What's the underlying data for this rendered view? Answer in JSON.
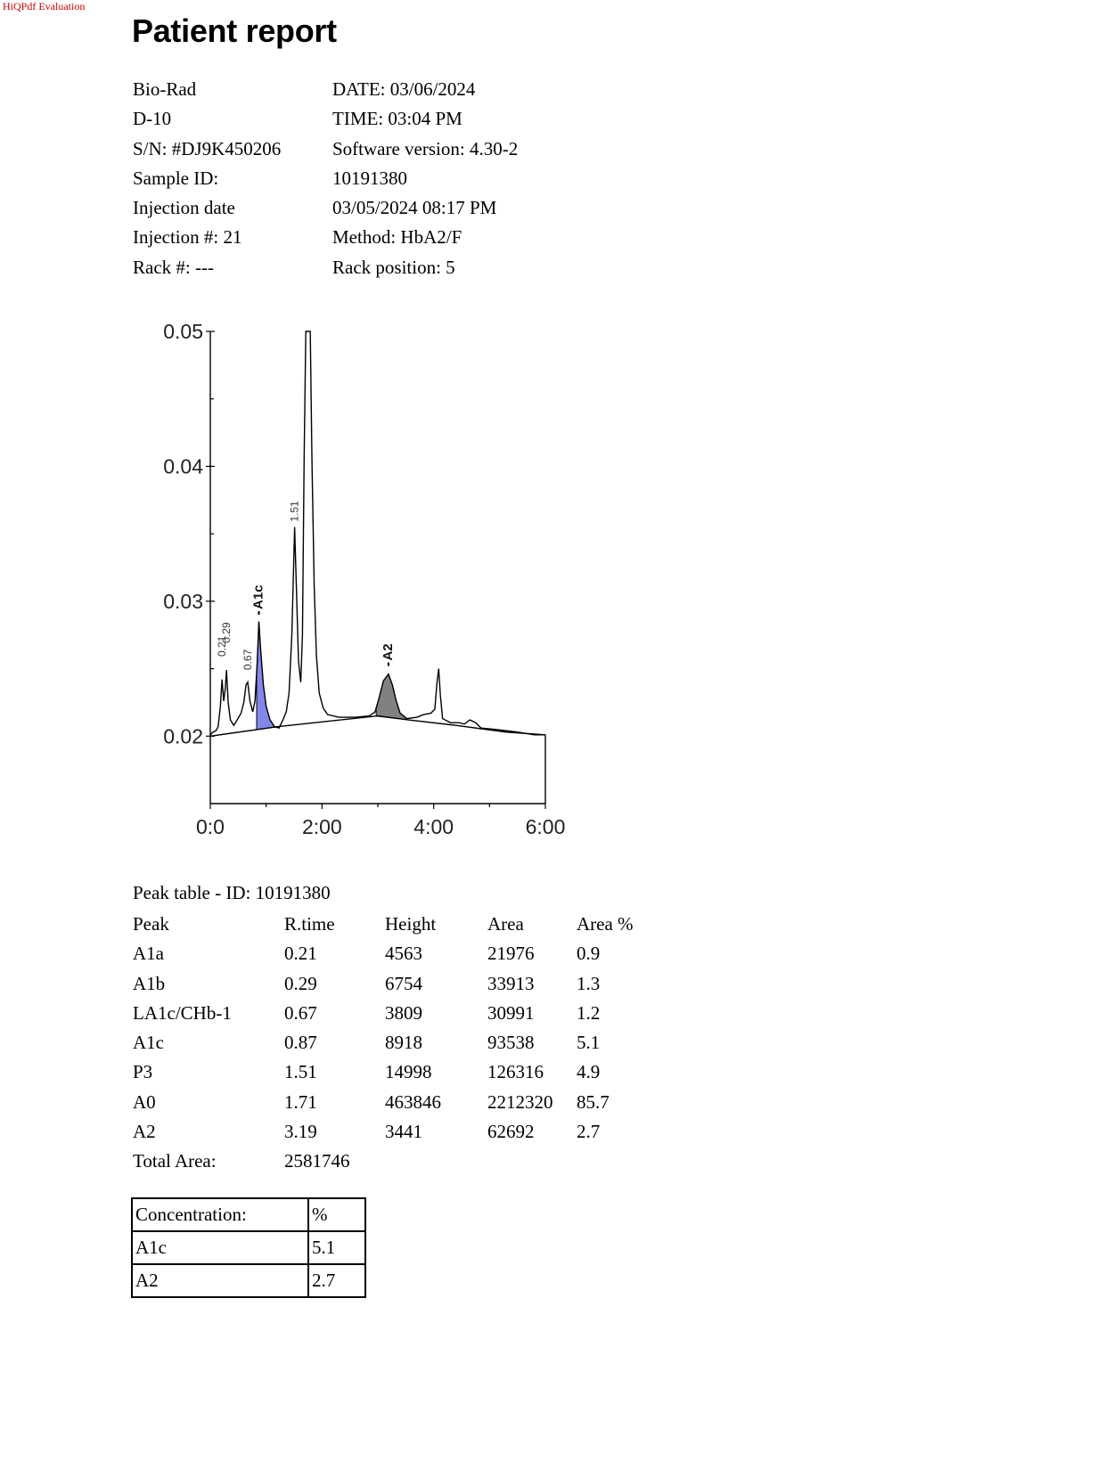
{
  "watermark": "HiQPdf Evaluation",
  "title": "Patient report",
  "info": [
    {
      "left": "Bio-Rad",
      "right": "DATE: 03/06/2024"
    },
    {
      "left": "D-10",
      "right": "TIME:  03:04 PM"
    },
    {
      "left": "S/N: #DJ9K450206",
      "right": "Software version: 4.30-2"
    },
    {
      "left": "Sample ID:",
      "right": "10191380"
    },
    {
      "left": "Injection date",
      "right": "03/05/2024 08:17 PM"
    },
    {
      "left": "Injection #: 21",
      "right": "Method: HbA2/F"
    },
    {
      "left": "Rack #: ---",
      "right": "Rack position: 5"
    }
  ],
  "chart_data": {
    "type": "line",
    "title": "",
    "xlabel": "",
    "ylabel": "",
    "x_tick_labels": [
      "0:0",
      "2:00",
      "4:00",
      "6:00"
    ],
    "y_tick_labels": [
      "0.05",
      "0.04",
      "0.03",
      "0.02"
    ],
    "xlim": [
      0,
      6
    ],
    "ylim": [
      0.015,
      0.05
    ],
    "grid": false,
    "peak_labels": [
      {
        "label": "0.21",
        "x": 0.21,
        "y": 0.0255
      },
      {
        "label": "0.29",
        "x": 0.29,
        "y": 0.0265
      },
      {
        "label": "0.67",
        "x": 0.67,
        "y": 0.0245
      },
      {
        "label": "A1c",
        "x": 0.87,
        "y": 0.029
      },
      {
        "label": "1.51",
        "x": 1.51,
        "y": 0.0355
      },
      {
        "label": "A2",
        "x": 3.19,
        "y": 0.0252
      }
    ],
    "shaded_peaks": [
      {
        "name": "A1c",
        "color": "#6f72e6",
        "x_range": [
          0.83,
          1.23
        ]
      },
      {
        "name": "A2",
        "color": "#6b6b6b",
        "x_range": [
          2.97,
          3.52
        ]
      }
    ],
    "trace": [
      [
        0,
        0.0201
      ],
      [
        0.05,
        0.0203
      ],
      [
        0.1,
        0.0204
      ],
      [
        0.14,
        0.0207
      ],
      [
        0.18,
        0.0222
      ],
      [
        0.21,
        0.0242
      ],
      [
        0.24,
        0.0226
      ],
      [
        0.27,
        0.0236
      ],
      [
        0.29,
        0.0249
      ],
      [
        0.32,
        0.0225
      ],
      [
        0.36,
        0.0212
      ],
      [
        0.42,
        0.0208
      ],
      [
        0.48,
        0.0212
      ],
      [
        0.55,
        0.0217
      ],
      [
        0.6,
        0.0225
      ],
      [
        0.64,
        0.0238
      ],
      [
        0.67,
        0.024
      ],
      [
        0.71,
        0.0226
      ],
      [
        0.76,
        0.0218
      ],
      [
        0.8,
        0.0226
      ],
      [
        0.84,
        0.0255
      ],
      [
        0.87,
        0.0285
      ],
      [
        0.9,
        0.0265
      ],
      [
        0.95,
        0.0238
      ],
      [
        1.0,
        0.0222
      ],
      [
        1.07,
        0.0212
      ],
      [
        1.15,
        0.0207
      ],
      [
        1.23,
        0.0206
      ],
      [
        1.3,
        0.0212
      ],
      [
        1.36,
        0.0218
      ],
      [
        1.41,
        0.0232
      ],
      [
        1.46,
        0.0275
      ],
      [
        1.51,
        0.0355
      ],
      [
        1.54,
        0.0312
      ],
      [
        1.58,
        0.0255
      ],
      [
        1.62,
        0.024
      ],
      [
        1.65,
        0.0275
      ],
      [
        1.68,
        0.0405
      ],
      [
        1.71,
        0.05
      ],
      [
        1.79,
        0.05
      ],
      [
        1.82,
        0.0405
      ],
      [
        1.86,
        0.0312
      ],
      [
        1.9,
        0.026
      ],
      [
        1.95,
        0.0232
      ],
      [
        2.02,
        0.0221
      ],
      [
        2.1,
        0.0216
      ],
      [
        2.3,
        0.0214
      ],
      [
        2.6,
        0.0214
      ],
      [
        2.85,
        0.0215
      ],
      [
        2.95,
        0.0218
      ],
      [
        3.02,
        0.0228
      ],
      [
        3.1,
        0.0241
      ],
      [
        3.19,
        0.0246
      ],
      [
        3.26,
        0.0238
      ],
      [
        3.33,
        0.0226
      ],
      [
        3.4,
        0.0217
      ],
      [
        3.52,
        0.0213
      ],
      [
        3.7,
        0.0214
      ],
      [
        3.82,
        0.0216
      ],
      [
        3.95,
        0.0217
      ],
      [
        4.02,
        0.022
      ],
      [
        4.06,
        0.024
      ],
      [
        4.09,
        0.025
      ],
      [
        4.12,
        0.023
      ],
      [
        4.16,
        0.0213
      ],
      [
        4.3,
        0.021
      ],
      [
        4.45,
        0.021
      ],
      [
        4.55,
        0.0209
      ],
      [
        4.65,
        0.0212
      ],
      [
        4.75,
        0.021
      ],
      [
        4.85,
        0.0206
      ],
      [
        5.1,
        0.0205
      ],
      [
        5.5,
        0.0203
      ],
      [
        5.8,
        0.0201
      ],
      [
        6.0,
        0.0201
      ]
    ],
    "baseline": [
      [
        0,
        0.02
      ],
      [
        1.2,
        0.0207
      ],
      [
        3.0,
        0.0215
      ],
      [
        3.55,
        0.0212
      ],
      [
        4.4,
        0.0208
      ],
      [
        5.3,
        0.0203
      ],
      [
        6.0,
        0.0201
      ]
    ]
  },
  "peak_table": {
    "title": "Peak table  -  ID: 10191380",
    "headers": [
      "Peak",
      "R.time",
      "Height",
      "Area",
      "Area %"
    ],
    "rows": [
      [
        "A1a",
        "0.21",
        "4563",
        "21976",
        "0.9"
      ],
      [
        "A1b",
        "0.29",
        "6754",
        "33913",
        "1.3"
      ],
      [
        "LA1c/CHb-1",
        "0.67",
        "3809",
        "30991",
        "1.2"
      ],
      [
        "A1c",
        "0.87",
        "8918",
        "93538",
        "5.1"
      ],
      [
        "P3",
        "1.51",
        "14998",
        "126316",
        "4.9"
      ],
      [
        "A0",
        "1.71",
        "463846",
        "2212320",
        "85.7"
      ],
      [
        "A2",
        "3.19",
        "3441",
        "62692",
        "2.7"
      ]
    ],
    "total_label": "Total Area:",
    "total_value": "2581746"
  },
  "concentration": {
    "header": [
      "Concentration:",
      "%"
    ],
    "rows": [
      [
        "A1c",
        "5.1"
      ],
      [
        "A2",
        "2.7"
      ]
    ]
  }
}
